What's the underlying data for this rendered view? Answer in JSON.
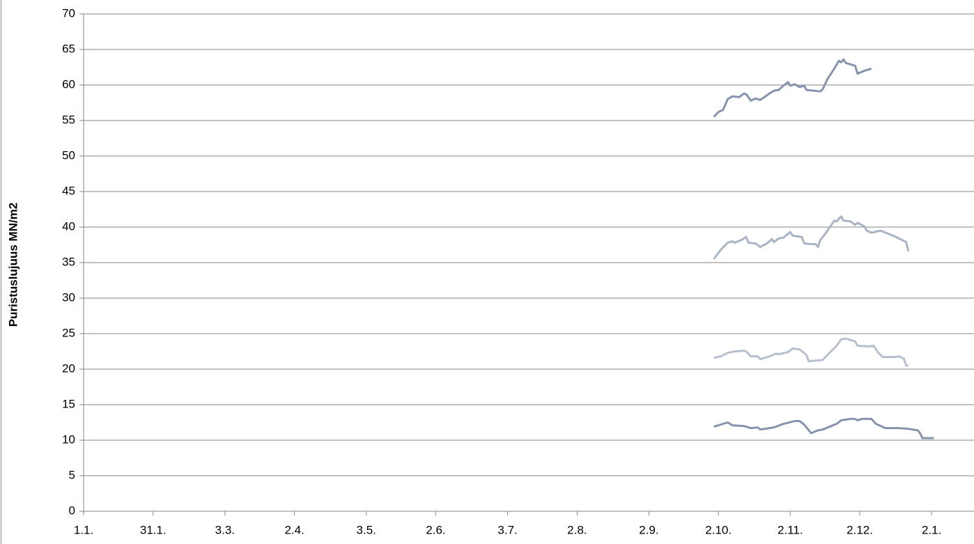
{
  "chart_data": {
    "type": "line",
    "y_label": "Puristuslujuus  MN/m2",
    "xlim": [
      0,
      384
    ],
    "ylim": [
      0,
      70
    ],
    "xticks": [
      {
        "value": 0,
        "label": "1.1."
      },
      {
        "value": 30,
        "label": "31.1."
      },
      {
        "value": 61,
        "label": "3.3."
      },
      {
        "value": 91,
        "label": "2.4."
      },
      {
        "value": 122,
        "label": "3.5."
      },
      {
        "value": 152,
        "label": "2.6."
      },
      {
        "value": 183,
        "label": "3.7."
      },
      {
        "value": 213,
        "label": "2.8."
      },
      {
        "value": 244,
        "label": "2.9."
      },
      {
        "value": 274,
        "label": "2.10."
      },
      {
        "value": 305,
        "label": "2.11."
      },
      {
        "value": 335,
        "label": "2.12."
      },
      {
        "value": 366,
        "label": "2.1."
      }
    ],
    "yticks": [
      0,
      5,
      10,
      15,
      20,
      25,
      30,
      35,
      40,
      45,
      50,
      55,
      60,
      65,
      70
    ],
    "grid": true,
    "series": [
      {
        "color": "#8693ac",
        "width": 3,
        "x": [
          272,
          274,
          276,
          278,
          280,
          283,
          285,
          286,
          288,
          290,
          292,
          293,
          296,
          298,
          300,
          302,
          304,
          305,
          307,
          309,
          311,
          312,
          318,
          319,
          321,
          324,
          326,
          327,
          328,
          329,
          333,
          334,
          337,
          340
        ],
        "values": [
          55.5,
          56.2,
          56.5,
          58.0,
          58.4,
          58.3,
          58.8,
          58.7,
          57.8,
          58.1,
          57.9,
          58.1,
          58.8,
          59.2,
          59.3,
          59.9,
          60.4,
          59.9,
          60.1,
          59.7,
          59.9,
          59.3,
          59.1,
          59.4,
          60.8,
          62.3,
          63.4,
          63.2,
          63.6,
          63.1,
          62.7,
          61.6,
          62.0,
          62.3
        ]
      },
      {
        "color": "#aab4c7",
        "width": 3,
        "x": [
          272,
          275,
          278,
          280,
          281,
          284,
          286,
          287,
          290,
          292,
          295,
          297,
          298,
          300,
          302,
          305,
          306,
          310,
          311,
          314,
          316,
          317,
          318,
          320,
          324,
          325,
          327,
          328,
          331,
          333,
          334,
          337,
          338,
          340,
          344,
          350,
          355,
          356
        ],
        "values": [
          35.5,
          36.8,
          37.8,
          38.0,
          37.8,
          38.2,
          38.6,
          37.8,
          37.7,
          37.2,
          37.7,
          38.3,
          37.9,
          38.4,
          38.5,
          39.3,
          38.8,
          38.6,
          37.7,
          37.6,
          37.6,
          37.2,
          38.2,
          39.0,
          40.9,
          40.8,
          41.5,
          40.9,
          40.8,
          40.3,
          40.6,
          40.1,
          39.5,
          39.2,
          39.5,
          38.7,
          37.9,
          36.6
        ]
      },
      {
        "color": "#b7c0cf",
        "width": 3,
        "x": [
          272,
          275,
          278,
          281,
          285,
          286,
          288,
          291,
          292,
          296,
          299,
          300,
          304,
          306,
          309,
          312,
          313,
          316,
          319,
          321,
          325,
          327,
          329,
          333,
          334,
          339,
          341,
          343,
          345,
          350,
          352,
          354,
          355,
          356
        ],
        "values": [
          21.6,
          21.8,
          22.3,
          22.5,
          22.6,
          22.5,
          21.8,
          21.8,
          21.4,
          21.8,
          22.2,
          22.1,
          22.4,
          22.9,
          22.8,
          22.0,
          21.1,
          21.2,
          21.3,
          22.0,
          23.3,
          24.2,
          24.3,
          23.9,
          23.3,
          23.2,
          23.3,
          22.3,
          21.7,
          21.7,
          21.8,
          21.5,
          20.5,
          20.5
        ]
      },
      {
        "color": "#8693ac",
        "width": 3,
        "x": [
          272,
          278,
          280,
          285,
          288,
          291,
          292,
          298,
          302,
          307,
          309,
          311,
          314,
          317,
          319,
          325,
          327,
          331,
          333,
          334,
          336,
          340,
          342,
          346,
          352,
          356,
          360,
          361,
          362,
          367
        ],
        "values": [
          11.9,
          12.5,
          12.1,
          12.0,
          11.7,
          11.8,
          11.5,
          11.8,
          12.3,
          12.7,
          12.7,
          12.2,
          11.0,
          11.4,
          11.5,
          12.3,
          12.8,
          13.0,
          13.0,
          12.8,
          13.0,
          13.0,
          12.3,
          11.7,
          11.7,
          11.6,
          11.4,
          11.0,
          10.3,
          10.3
        ]
      }
    ]
  }
}
